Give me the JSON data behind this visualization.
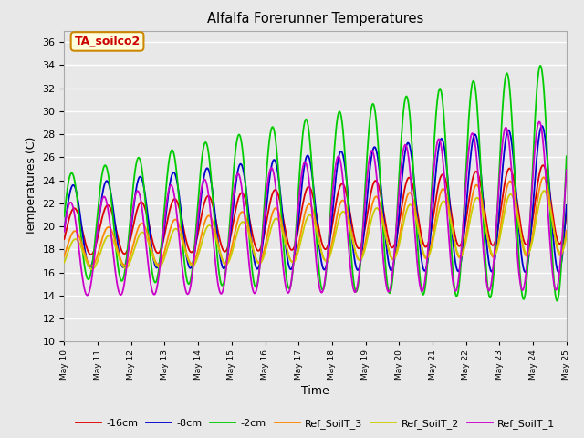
{
  "title": "Alfalfa Forerunner Temperatures",
  "xlabel": "Time",
  "ylabel": "Temperatures (C)",
  "ylim": [
    10,
    37
  ],
  "yticks": [
    10,
    12,
    14,
    16,
    18,
    20,
    22,
    24,
    26,
    28,
    30,
    32,
    34,
    36
  ],
  "annotation_text": "TA_soilco2",
  "annotation_color": "#cc0000",
  "annotation_bg": "#ffffdd",
  "annotation_border": "#cc8800",
  "plot_bg": "#e8e8e8",
  "grid_color": "#ffffff",
  "series": {
    "-16cm": {
      "color": "#dd0000",
      "lw": 1.3
    },
    "-8cm": {
      "color": "#0000cc",
      "lw": 1.3
    },
    "-2cm": {
      "color": "#00cc00",
      "lw": 1.3
    },
    "Ref_SoilT_3": {
      "color": "#ff8800",
      "lw": 1.3
    },
    "Ref_SoilT_2": {
      "color": "#cccc00",
      "lw": 1.3
    },
    "Ref_SoilT_1": {
      "color": "#cc00cc",
      "lw": 1.3
    }
  },
  "n_days": 15,
  "start_day": 10,
  "points_per_day": 48,
  "figsize": [
    6.4,
    4.8
  ],
  "dpi": 100
}
